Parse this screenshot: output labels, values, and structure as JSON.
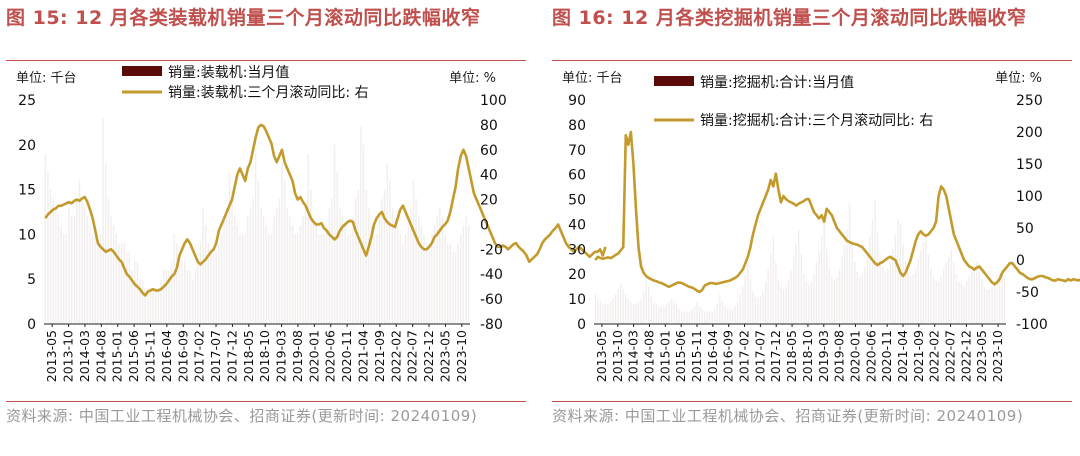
{
  "colors": {
    "title": "#C0504D",
    "bar": "#5B0A0A",
    "line": "#C39A2C",
    "axis_red": "#FF0000",
    "source": "#9a9a9a"
  },
  "panels": [
    {
      "title": "图 15:  12 月各类装载机销量三个月滚动同比跌幅收窄",
      "source": "资料来源: 中国工业工程机械协会、招商证券(更新时间: 20240109)",
      "unit_left": "单位: 千台",
      "unit_right": "单位: %",
      "chart_data": {
        "type": "bar+line",
        "x_ticks": [
          "2013-05",
          "2013-10",
          "2014-03",
          "2014-08",
          "2015-01",
          "2015-06",
          "2015-11",
          "2016-04",
          "2016-09",
          "2017-02",
          "2017-07",
          "2017-12",
          "2018-05",
          "2018-10",
          "2019-03",
          "2019-08",
          "2020-01",
          "2020-06",
          "2020-11",
          "2021-04",
          "2021-09",
          "2022-02",
          "2022-07",
          "2022-12",
          "2023-05",
          "2023-10"
        ],
        "y_left": {
          "min": 0,
          "max": 25,
          "ticks": [
            0,
            5,
            10,
            15,
            20,
            25
          ]
        },
        "y_right": {
          "min": -80,
          "max": 100,
          "ticks": [
            -80,
            -60,
            -40,
            -20,
            0,
            20,
            40,
            60,
            80,
            100
          ],
          "color": "#000000"
        },
        "series": [
          {
            "name": "销量:装载机:当月值",
            "type": "bar",
            "axis": "left",
            "values": [
              19,
              17,
              15,
              14,
              13,
              12,
              11,
              10,
              10,
              13,
              12,
              12,
              14,
              16,
              14,
              13,
              12,
              11,
              10,
              10,
              9,
              10,
              23,
              18,
              14,
              12,
              11,
              10,
              9,
              9,
              9,
              8,
              8,
              6,
              7,
              7,
              5,
              5,
              4,
              4,
              4,
              4,
              4,
              4,
              5,
              6,
              6,
              6,
              7,
              10,
              9,
              8,
              7,
              7,
              6,
              6,
              5,
              6,
              7,
              9,
              13,
              11,
              9,
              8,
              8,
              8,
              9,
              10,
              12,
              13,
              17,
              15,
              12,
              11,
              10,
              10,
              10,
              12,
              13,
              14,
              19,
              16,
              13,
              12,
              11,
              10,
              10,
              12,
              13,
              14,
              18,
              16,
              13,
              12,
              11,
              10,
              10,
              11,
              12,
              13,
              19,
              15,
              12,
              11,
              10,
              10,
              10,
              11,
              13,
              14,
              20,
              17,
              13,
              12,
              11,
              10,
              10,
              12,
              14,
              15,
              22,
              20,
              15,
              13,
              11,
              10,
              10,
              12,
              14,
              15,
              18,
              16,
              13,
              12,
              11,
              10,
              9,
              10,
              11,
              13,
              16,
              14,
              12,
              11,
              10,
              9,
              9,
              10,
              11,
              12,
              13,
              12,
              10,
              9,
              9,
              8,
              8,
              9,
              10,
              11,
              12,
              11
            ]
          },
          {
            "name": "销量:装载机:三个月滚动同比: 右",
            "type": "line",
            "axis": "right",
            "values": [
              5,
              8,
              10,
              12,
              13,
              15,
              15,
              16,
              17,
              18,
              17,
              19,
              20,
              19,
              21,
              22,
              18,
              12,
              5,
              -5,
              -15,
              -18,
              -20,
              -22,
              -21,
              -20,
              -22,
              -25,
              -28,
              -30,
              -35,
              -40,
              -42,
              -45,
              -48,
              -50,
              -52,
              -55,
              -57,
              -54,
              -53,
              -52,
              -53,
              -53,
              -52,
              -50,
              -48,
              -45,
              -42,
              -40,
              -35,
              -25,
              -20,
              -15,
              -12,
              -15,
              -20,
              -25,
              -30,
              -32,
              -30,
              -28,
              -25,
              -22,
              -20,
              -15,
              -5,
              0,
              5,
              10,
              15,
              20,
              30,
              40,
              45,
              40,
              35,
              45,
              50,
              60,
              70,
              78,
              80,
              79,
              75,
              70,
              65,
              55,
              50,
              55,
              60,
              50,
              45,
              40,
              35,
              25,
              20,
              22,
              18,
              15,
              10,
              5,
              2,
              0,
              0,
              1,
              -3,
              -5,
              -8,
              -10,
              -12,
              -10,
              -5,
              -2,
              0,
              2,
              3,
              2,
              -5,
              -10,
              -15,
              -20,
              -25,
              -18,
              -10,
              0,
              5,
              8,
              10,
              5,
              2,
              0,
              -1,
              -2,
              5,
              12,
              15,
              10,
              5,
              0,
              -5,
              -10,
              -15,
              -18,
              -20,
              -20,
              -18,
              -15,
              -10,
              -8,
              -5,
              -2,
              0,
              3,
              10,
              20,
              30,
              45,
              55,
              60,
              55,
              45,
              35,
              25,
              20,
              15,
              10,
              5,
              0,
              -5,
              -10,
              -15,
              -18,
              -18,
              -17,
              -18,
              -20,
              -18,
              -16,
              -15,
              -18,
              -20,
              -22,
              -25,
              -30,
              -28,
              -26,
              -24,
              -20,
              -15,
              -12,
              -10,
              -8,
              -5,
              -3,
              0,
              -5,
              -10,
              -15,
              -18,
              -20,
              -22,
              -20,
              -18,
              -20,
              -22,
              -24,
              -26,
              -24,
              -22,
              -22,
              -20,
              -25,
              -18
            ]
          }
        ]
      }
    },
    {
      "title": "图 16:  12 月各类挖掘机销量三个月滚动同比跌幅收窄",
      "source": "资料来源: 中国工业工程机械协会、招商证券(更新时间: 20240109)",
      "unit_left": "单位: 千台",
      "unit_right": "单位: %",
      "chart_data": {
        "type": "bar+line",
        "x_ticks": [
          "2013-05",
          "2013-10",
          "2014-03",
          "2014-08",
          "2015-01",
          "2015-06",
          "2015-11",
          "2016-04",
          "2016-09",
          "2017-02",
          "2017-07",
          "2017-12",
          "2018-05",
          "2018-10",
          "2019-03",
          "2019-08",
          "2020-01",
          "2020-06",
          "2020-11",
          "2021-04",
          "2021-09",
          "2022-02",
          "2022-07",
          "2022-12",
          "2023-05",
          "2023-10"
        ],
        "y_left": {
          "min": 0,
          "max": 90,
          "ticks": [
            0,
            10,
            20,
            30,
            40,
            50,
            60,
            70,
            80,
            90
          ]
        },
        "y_right": {
          "min": -100,
          "max": 250,
          "ticks": [
            -100,
            -50,
            0,
            50,
            100,
            150,
            200,
            250
          ],
          "color": "#FF0000"
        },
        "series": [
          {
            "name": "销量:挖掘机:合计:当月值",
            "type": "bar",
            "axis": "left",
            "values": [
              12,
              10,
              9,
              8,
              8,
              8,
              9,
              10,
              12,
              14,
              16,
              14,
              12,
              10,
              9,
              8,
              8,
              9,
              10,
              13,
              20,
              15,
              11,
              9,
              8,
              7,
              7,
              7,
              8,
              9,
              10,
              9,
              8,
              6,
              5,
              5,
              5,
              5,
              6,
              7,
              9,
              7,
              6,
              5,
              5,
              5,
              5,
              6,
              8,
              12,
              9,
              7,
              6,
              6,
              6,
              7,
              9,
              12,
              15,
              20,
              25,
              18,
              13,
              11,
              10,
              11,
              13,
              17,
              22,
              28,
              35,
              25,
              18,
              15,
              14,
              15,
              18,
              22,
              27,
              32,
              38,
              28,
              20,
              17,
              16,
              17,
              20,
              25,
              30,
              35,
              42,
              30,
              22,
              19,
              18,
              19,
              22,
              27,
              32,
              38,
              48,
              34,
              25,
              21,
              19,
              20,
              23,
              28,
              35,
              42,
              50,
              37,
              28,
              23,
              21,
              22,
              25,
              30,
              36,
              42,
              40,
              32,
              25,
              21,
              19,
              20,
              22,
              26,
              30,
              33,
              35,
              28,
              22,
              19,
              17,
              17,
              19,
              22,
              25,
              27,
              30,
              25,
              20,
              17,
              16,
              15,
              17,
              19,
              21,
              23,
              25,
              21,
              18,
              15,
              14,
              14,
              15,
              17,
              19,
              20,
              22,
              19
            ]
          },
          {
            "name": "销量:挖掘机:合计:三个月滚动同比: 右",
            "type": "line",
            "axis": "right",
            "values": [
              0,
              5,
              3,
              2,
              3,
              4,
              3,
              5,
              8,
              10,
              15,
              20,
              195,
              180,
              200,
              150,
              80,
              20,
              -10,
              -20,
              -25,
              -28,
              -30,
              -32,
              -33,
              -35,
              -36,
              -38,
              -40,
              -42,
              -40,
              -38,
              -36,
              -35,
              -36,
              -38,
              -40,
              -42,
              -43,
              -45,
              -48,
              -50,
              -47,
              -40,
              -38,
              -36,
              -36,
              -37,
              -37,
              -36,
              -35,
              -34,
              -33,
              -32,
              -30,
              -28,
              -25,
              -20,
              -15,
              -5,
              5,
              20,
              40,
              55,
              70,
              80,
              90,
              100,
              110,
              125,
              115,
              135,
              110,
              90,
              100,
              95,
              92,
              90,
              88,
              85,
              88,
              90,
              92,
              95,
              95,
              85,
              75,
              70,
              65,
              70,
              60,
              80,
              75,
              70,
              60,
              50,
              45,
              40,
              35,
              30,
              28,
              26,
              25,
              24,
              22,
              20,
              15,
              10,
              5,
              0,
              -5,
              -8,
              -5,
              -3,
              0,
              3,
              5,
              2,
              0,
              -10,
              -20,
              -25,
              -20,
              -10,
              0,
              15,
              30,
              40,
              45,
              40,
              38,
              40,
              45,
              50,
              60,
              100,
              115,
              110,
              100,
              80,
              60,
              40,
              30,
              20,
              10,
              0,
              -5,
              -10,
              -12,
              -15,
              -12,
              -10,
              -15,
              -20,
              -25,
              -30,
              -35,
              -38,
              -35,
              -30,
              -20,
              -15,
              -10,
              -5,
              -5,
              -10,
              -15,
              -20,
              -22,
              -25,
              -28,
              -30,
              -30,
              -28,
              -26,
              -25,
              -25,
              -27,
              -28,
              -30,
              -32,
              -32,
              -30,
              -31,
              -32,
              -33,
              -30,
              -32,
              -30,
              -31,
              -32,
              -30,
              -31,
              -32,
              -25
            ]
          }
        ]
      }
    }
  ]
}
